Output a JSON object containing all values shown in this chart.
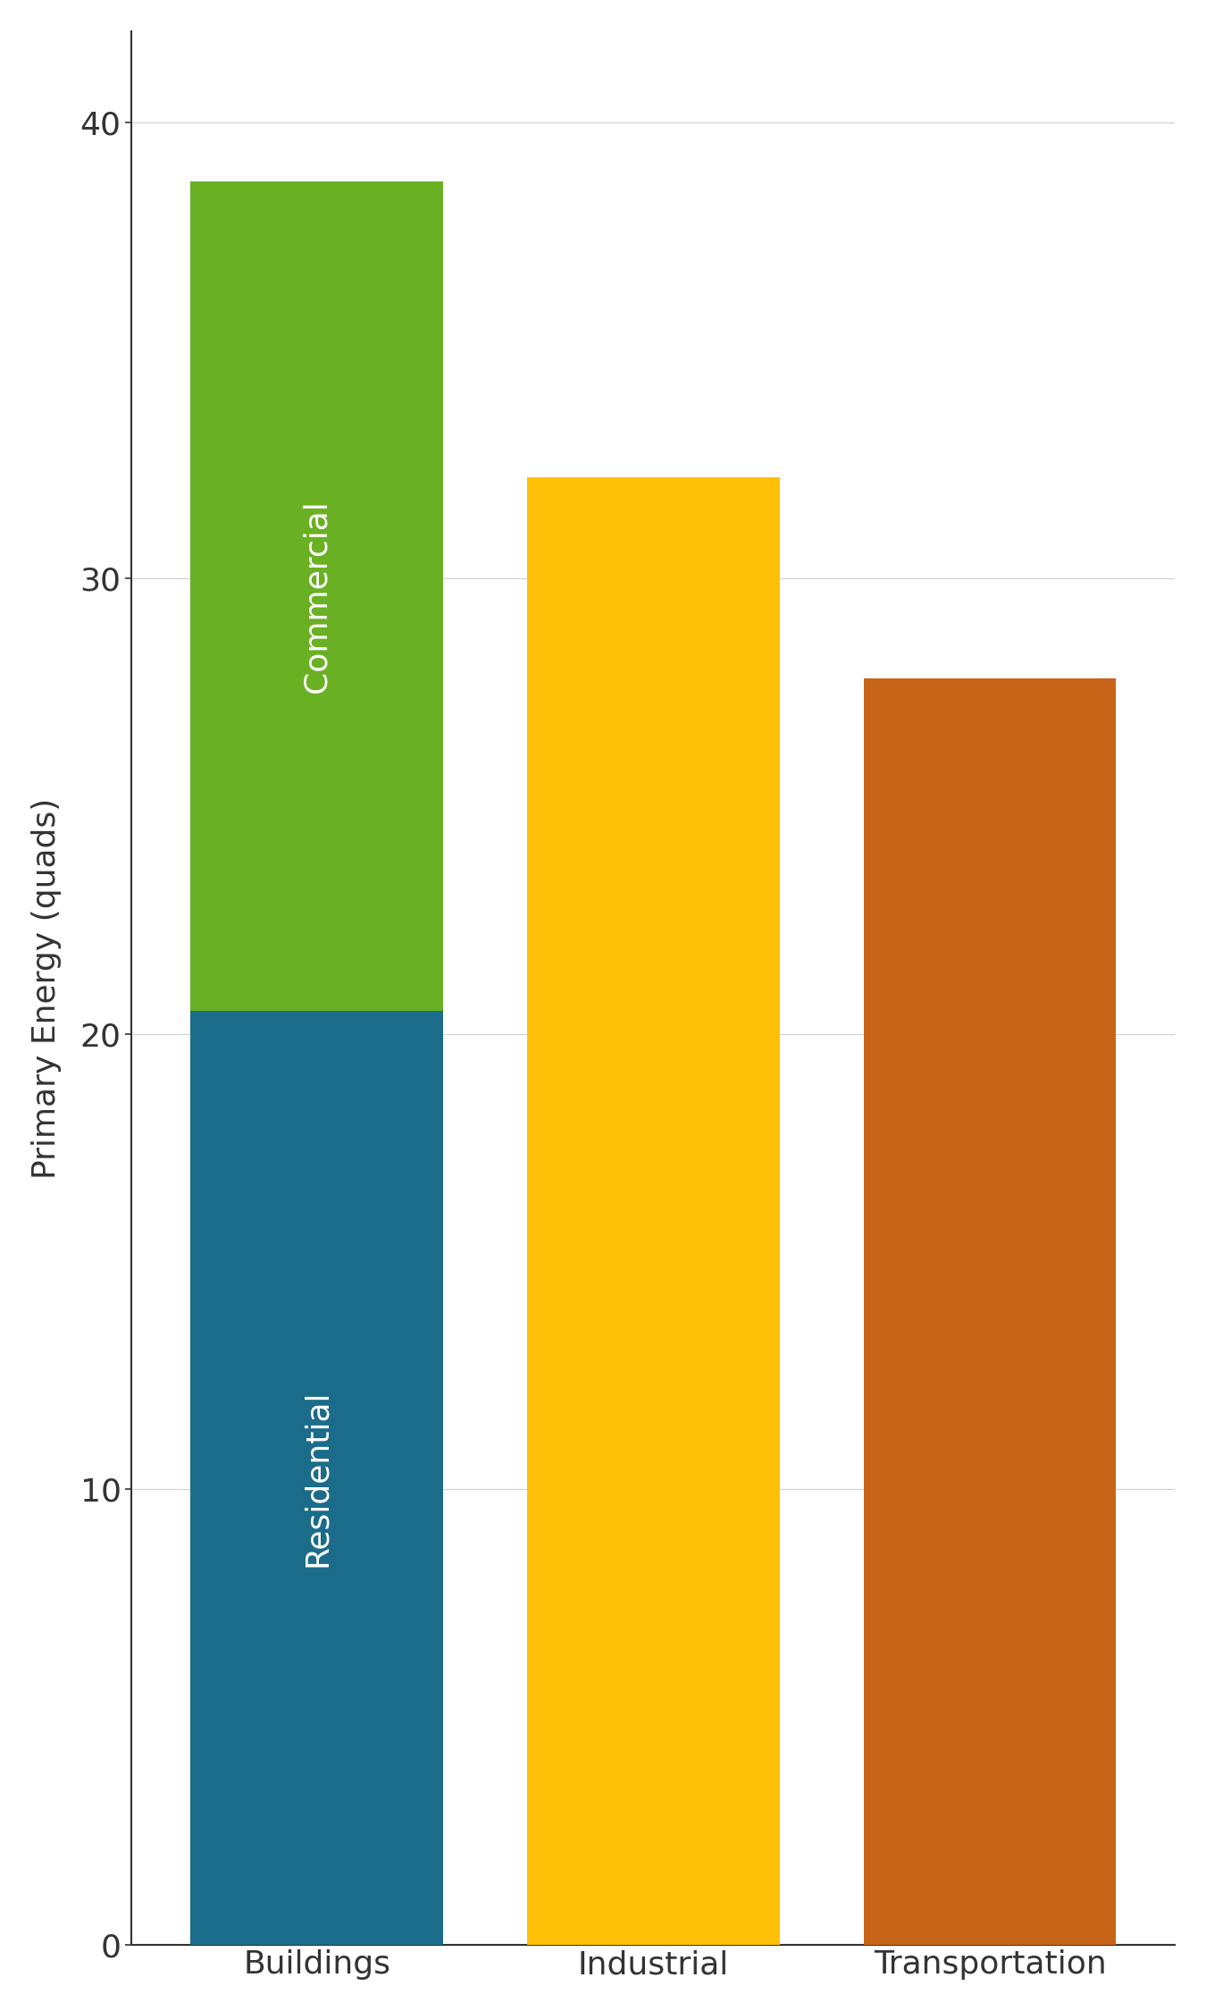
{
  "categories": [
    "Buildings",
    "Industrial",
    "Transportation"
  ],
  "residential_value": 20.5,
  "commercial_value": 18.2,
  "industrial_value": 32.2,
  "transportation_value": 27.8,
  "residential_color": "#1b6b8a",
  "commercial_color": "#6ab023",
  "industrial_color": "#FFC107",
  "transportation_color": "#c86418",
  "ylabel": "Primary Energy (quads)",
  "ylim": [
    0,
    42
  ],
  "yticks": [
    0,
    10,
    20,
    30,
    40
  ],
  "background_color": "#ffffff",
  "grid_color": "#d0d0d0",
  "text_color_residential": "#ffffff",
  "text_color_commercial": "#ffffff",
  "residential_label": "Residential",
  "commercial_label": "Commercial",
  "bar_width": 0.75,
  "ylabel_fontsize": 26,
  "tick_fontsize": 26,
  "label_fontsize": 26
}
